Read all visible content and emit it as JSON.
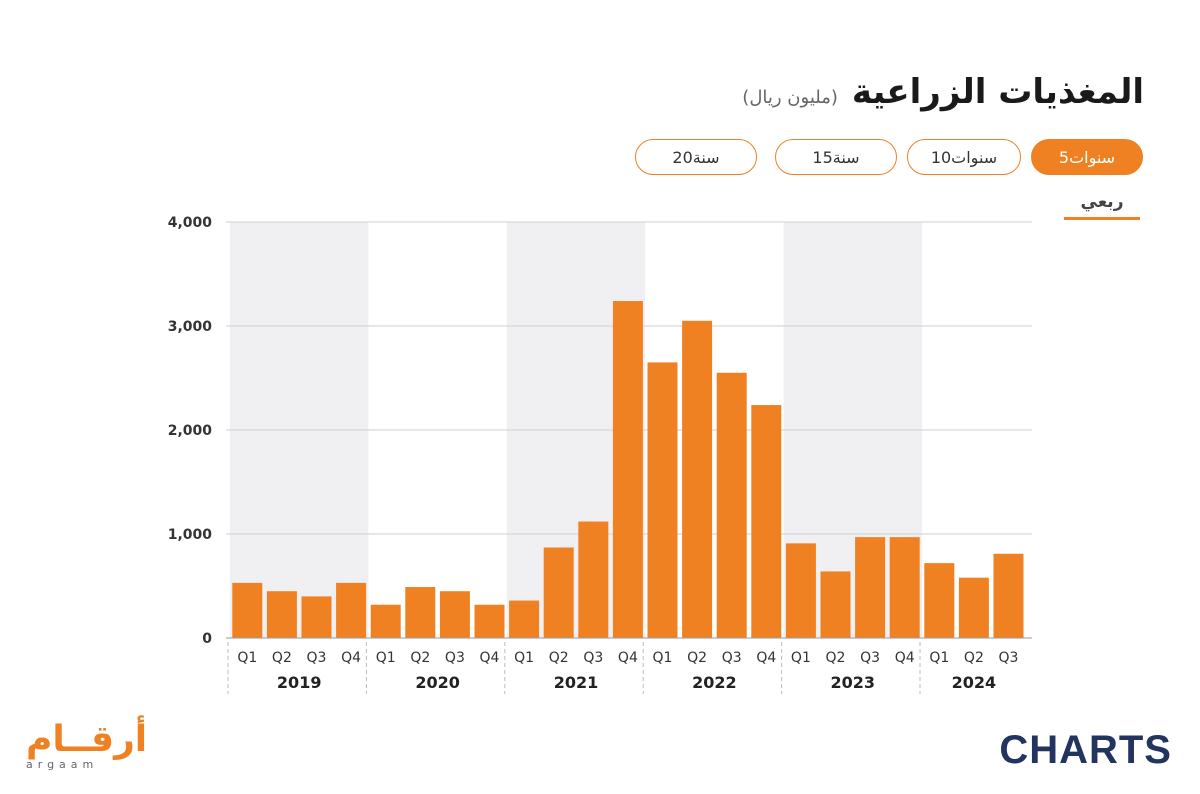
{
  "header": {
    "title": "المغذيات الزراعية",
    "unit": "(مليون ريال)"
  },
  "range_tabs": [
    {
      "label": "5سنوات",
      "active": true
    },
    {
      "label": "10سنوات",
      "active": false
    },
    {
      "label": "15سنة",
      "active": false
    },
    {
      "label": "20سنة",
      "active": false
    }
  ],
  "frequency": {
    "label": "ربعي"
  },
  "logos": {
    "arabic": "أرقــام",
    "latin": "argaam",
    "charts": "CHARTS"
  },
  "colors": {
    "bar": "#f08122",
    "band": "#f0f0f2",
    "accent": "#f08122"
  },
  "chart_data": {
    "type": "bar",
    "ylim": [
      0,
      4000
    ],
    "yticks": [
      "0",
      "1,000",
      "2,000",
      "3,000",
      "4,000"
    ],
    "ytick_values": [
      0,
      1000,
      2000,
      3000,
      4000
    ],
    "groups": [
      {
        "year": "2019",
        "quarters": [
          "Q1",
          "Q2",
          "Q3",
          "Q4"
        ],
        "values": [
          530,
          450,
          400,
          530
        ]
      },
      {
        "year": "2020",
        "quarters": [
          "Q1",
          "Q2",
          "Q3",
          "Q4"
        ],
        "values": [
          320,
          490,
          450,
          320
        ]
      },
      {
        "year": "2021",
        "quarters": [
          "Q1",
          "Q2",
          "Q3",
          "Q4"
        ],
        "values": [
          360,
          870,
          1120,
          3240
        ]
      },
      {
        "year": "2022",
        "quarters": [
          "Q1",
          "Q2",
          "Q3",
          "Q4"
        ],
        "values": [
          2650,
          3050,
          2550,
          2240
        ]
      },
      {
        "year": "2023",
        "quarters": [
          "Q1",
          "Q2",
          "Q3",
          "Q4"
        ],
        "values": [
          910,
          640,
          970,
          970
        ]
      },
      {
        "year": "2024",
        "quarters": [
          "Q1",
          "Q2",
          "Q3"
        ],
        "values": [
          720,
          580,
          810
        ]
      }
    ],
    "grid": true,
    "alternating_bands": true
  }
}
